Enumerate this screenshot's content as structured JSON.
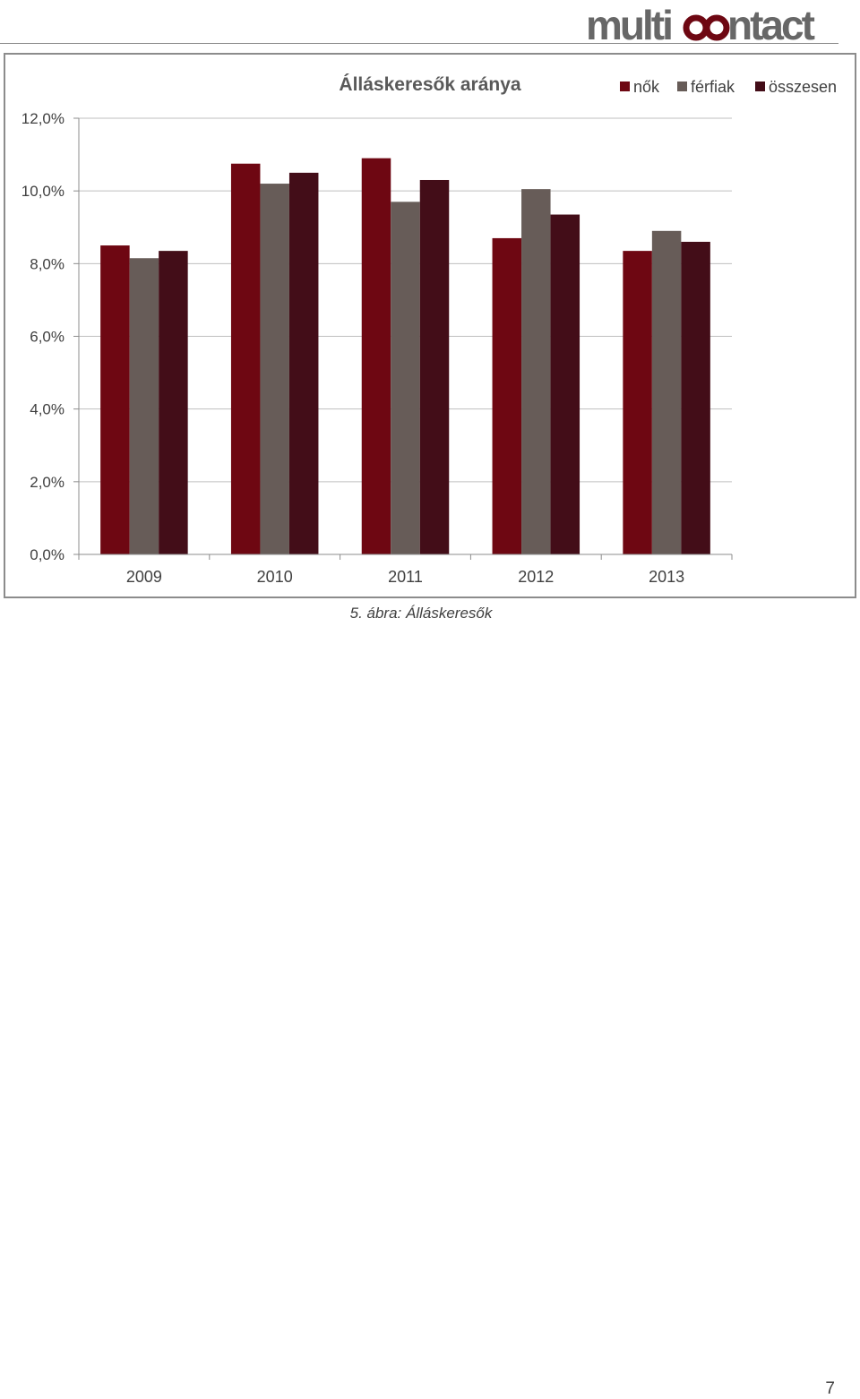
{
  "header": {
    "logo_text_left": "multi",
    "logo_text_right": "ntact"
  },
  "chart_data": {
    "type": "bar",
    "title": "Álláskeresők aránya",
    "categories": [
      "2009",
      "2010",
      "2011",
      "2012",
      "2013"
    ],
    "series": [
      {
        "name": "nők",
        "values": [
          8.5,
          10.75,
          10.9,
          8.7,
          8.35
        ]
      },
      {
        "name": "férfiak",
        "values": [
          8.15,
          10.2,
          9.7,
          10.05,
          8.9
        ]
      },
      {
        "name": "összesen",
        "values": [
          8.35,
          10.5,
          10.3,
          9.35,
          8.6
        ]
      }
    ],
    "ylim": [
      0,
      12
    ],
    "yticks": [
      0,
      2,
      4,
      6,
      8,
      10,
      12
    ],
    "ytick_labels": [
      "0,0%",
      "2,0%",
      "4,0%",
      "6,0%",
      "8,0%",
      "10,0%",
      "12,0%"
    ],
    "colors": [
      "#6e0712",
      "#675c58",
      "#430d18"
    ],
    "grid": true,
    "legend": "top-right"
  },
  "caption": "5. ábra: Álláskeresők",
  "page_number": "7"
}
